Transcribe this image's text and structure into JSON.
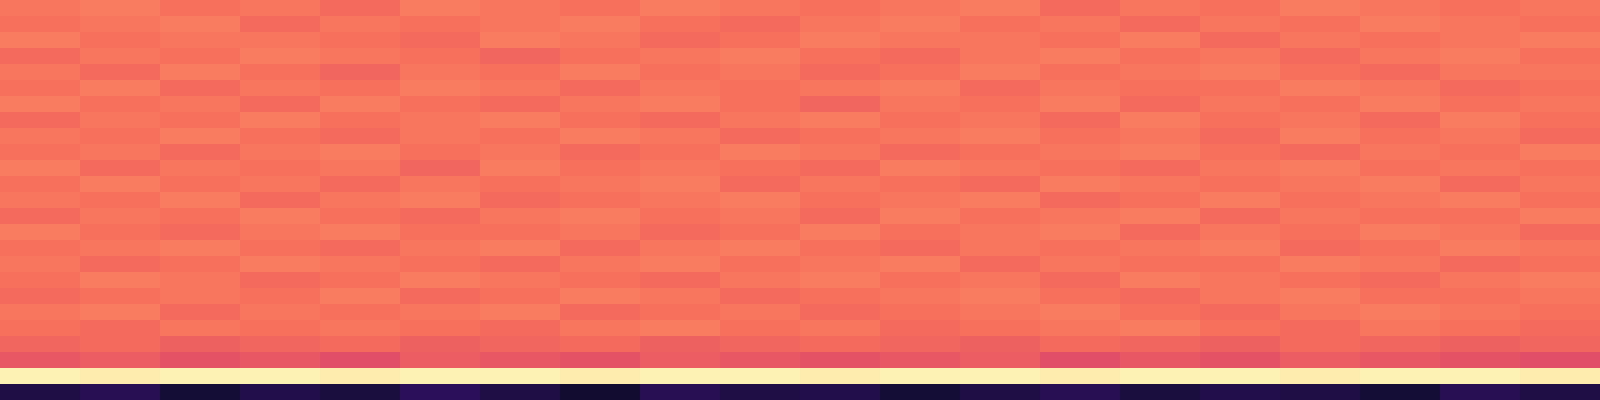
{
  "chart_data": {
    "type": "heatmap",
    "tick_labels": false,
    "zlim": [
      -80,
      0
    ],
    "cells": [
      [
        -23,
        -22,
        -24,
        -23,
        -25,
        -22,
        -23,
        -24,
        -22,
        -23,
        -24,
        -23,
        -22,
        -25,
        -23,
        -24,
        -22,
        -23,
        -24,
        -23
      ],
      [
        -24,
        -23,
        -22,
        -25,
        -23,
        -24,
        -23,
        -22,
        -24,
        -25,
        -23,
        -22,
        -24,
        -23,
        -25,
        -23,
        -24,
        -22,
        -23,
        -24
      ],
      [
        -22,
        -24,
        -23,
        -23,
        -24,
        -25,
        -22,
        -23,
        -25,
        -24,
        -22,
        -23,
        -23,
        -24,
        -22,
        -25,
        -23,
        -24,
        -23,
        -22
      ],
      [
        -25,
        -23,
        -24,
        -22,
        -23,
        -24,
        -26,
        -24,
        -23,
        -22,
        -24,
        -25,
        -23,
        -22,
        -24,
        -23,
        -25,
        -23,
        -22,
        -24
      ],
      [
        -23,
        -25,
        -22,
        -24,
        -26,
        -23,
        -24,
        -22,
        -24,
        -23,
        -25,
        -24,
        -22,
        -24,
        -23,
        -22,
        -24,
        -25,
        -23,
        -23
      ],
      [
        -24,
        -22,
        -25,
        -23,
        -24,
        -22,
        -23,
        -25,
        -23,
        -24,
        -23,
        -22,
        -25,
        -23,
        -24,
        -24,
        -22,
        -23,
        -25,
        -24
      ],
      [
        -22,
        -24,
        -23,
        -25,
        -22,
        -24,
        -25,
        -23,
        -22,
        -24,
        -26,
        -23,
        -24,
        -22,
        -25,
        -23,
        -24,
        -22,
        -24,
        -23
      ],
      [
        -25,
        -23,
        -24,
        -22,
        -24,
        -23,
        -22,
        -24,
        -25,
        -23,
        -22,
        -24,
        -23,
        -25,
        -22,
        -24,
        -23,
        -25,
        -22,
        -24
      ],
      [
        -23,
        -24,
        -22,
        -24,
        -25,
        -23,
        -24,
        -22,
        -23,
        -25,
        -24,
        -23,
        -22,
        -24,
        -23,
        -25,
        -22,
        -24,
        -23,
        -25
      ],
      [
        -24,
        -23,
        -25,
        -23,
        -22,
        -24,
        -23,
        -25,
        -24,
        -22,
        -23,
        -25,
        -24,
        -23,
        -22,
        -24,
        -25,
        -23,
        -24,
        -22
      ],
      [
        -22,
        -25,
        -23,
        -24,
        -23,
        -26,
        -22,
        -24,
        -23,
        -24,
        -25,
        -22,
        -23,
        -24,
        -25,
        -23,
        -22,
        -24,
        -23,
        -24
      ],
      [
        -24,
        -22,
        -24,
        -23,
        -25,
        -23,
        -24,
        -23,
        -22,
        -25,
        -23,
        -24,
        -25,
        -22,
        -23,
        -24,
        -23,
        -22,
        -25,
        -23
      ],
      [
        -23,
        -24,
        -22,
        -25,
        -23,
        -22,
        -25,
        -24,
        -23,
        -22,
        -24,
        -23,
        -22,
        -25,
        -24,
        -22,
        -24,
        -23,
        -22,
        -24
      ],
      [
        -25,
        -23,
        -24,
        -22,
        -24,
        -25,
        -23,
        -22,
        -24,
        -23,
        -25,
        -22,
        -24,
        -23,
        -22,
        -25,
        -23,
        -24,
        -24,
        -22
      ],
      [
        -22,
        -24,
        -25,
        -23,
        -22,
        -24,
        -24,
        -23,
        -25,
        -24,
        -22,
        -24,
        -23,
        -22,
        -25,
        -23,
        -24,
        -22,
        -23,
        -25
      ],
      [
        -24,
        -23,
        -22,
        -24,
        -25,
        -23,
        -22,
        -25,
        -23,
        -22,
        -24,
        -25,
        -23,
        -24,
        -23,
        -22,
        -25,
        -24,
        -22,
        -23
      ],
      [
        -23,
        -25,
        -24,
        -22,
        -23,
        -24,
        -25,
        -23,
        -22,
        -24,
        -23,
        -22,
        -25,
        -23,
        -24,
        -24,
        -22,
        -23,
        -25,
        -24
      ],
      [
        -24,
        -22,
        -23,
        -25,
        -24,
        -22,
        -23,
        -24,
        -25,
        -23,
        -22,
        -24,
        -23,
        -25,
        -22,
        -23,
        -24,
        -25,
        -23,
        -22
      ],
      [
        -25,
        -24,
        -23,
        -24,
        -22,
        -25,
        -24,
        -22,
        -23,
        -25,
        -24,
        -23,
        -22,
        -24,
        -25,
        -23,
        -22,
        -24,
        -24,
        -23
      ],
      [
        -23,
        -22,
        -25,
        -23,
        -24,
        -23,
        -22,
        -25,
        -24,
        -23,
        -25,
        -24,
        -23,
        -22,
        -24,
        -25,
        -23,
        -22,
        -23,
        -24
      ],
      [
        -24,
        -25,
        -23,
        -24,
        -23,
        -24,
        -25,
        -23,
        -22,
        -24,
        -23,
        -25,
        -24,
        -23,
        -22,
        -24,
        -25,
        -23,
        -24,
        -25
      ],
      [
        -26,
        -25,
        -27,
        -26,
        -25,
        -27,
        -26,
        -25,
        -27,
        -26,
        -25,
        -26,
        -27,
        -25,
        -26,
        -27,
        -25,
        -26,
        -27,
        -26
      ],
      [
        -29,
        -28,
        -30,
        -29,
        -31,
        -28,
        -29,
        -30,
        -28,
        -29,
        -30,
        -29,
        -28,
        -31,
        -29,
        -30,
        -28,
        -29,
        -30,
        -31
      ],
      [
        -2,
        -3,
        -2,
        -2,
        -3,
        -2,
        -2,
        -3,
        -2,
        -2,
        -3,
        -2,
        -2,
        -3,
        -2,
        -2,
        -3,
        -2,
        -2,
        -3
      ],
      [
        -70,
        -68,
        -72,
        -69,
        -71,
        -67,
        -70,
        -73,
        -68,
        -70,
        -69,
        -72,
        -70,
        -68,
        -71,
        -69,
        -70,
        -72,
        -68,
        -70
      ]
    ]
  }
}
